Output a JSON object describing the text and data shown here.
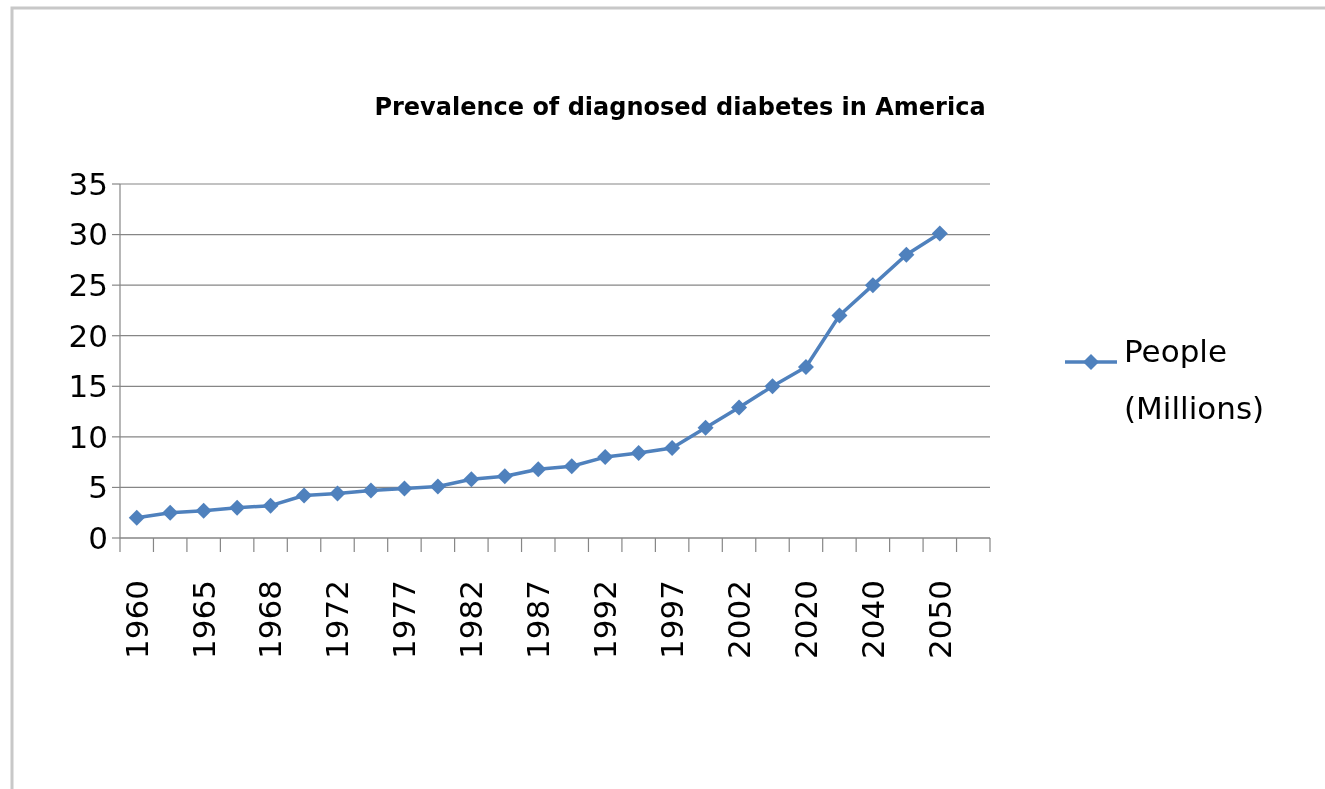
{
  "chart_data": {
    "type": "line",
    "title": "Prevalence of diagnosed diabetes in America",
    "categories": [
      "1960",
      null,
      "1965",
      null,
      "1968",
      null,
      "1972",
      null,
      "1977",
      null,
      "1982",
      null,
      "1987",
      null,
      "1992",
      null,
      "1997",
      null,
      "2002",
      null,
      "2020",
      null,
      "2040",
      null,
      "2050",
      null
    ],
    "series": [
      {
        "name": "People (Millions)",
        "color": "#4f81bd",
        "values": [
          2.0,
          2.5,
          2.7,
          3.0,
          3.2,
          4.2,
          4.4,
          4.7,
          4.9,
          5.1,
          5.8,
          6.1,
          6.8,
          7.1,
          8.0,
          8.4,
          8.9,
          10.9,
          12.9,
          15.0,
          16.9,
          22.0,
          25.0,
          28.0,
          30.1,
          null
        ]
      }
    ],
    "ylim": [
      0,
      35
    ],
    "yticks": [
      0,
      5,
      10,
      15,
      20,
      25,
      30,
      35
    ],
    "grid": "y",
    "legend": "right",
    "marker": "diamond",
    "line_style": "solid"
  }
}
